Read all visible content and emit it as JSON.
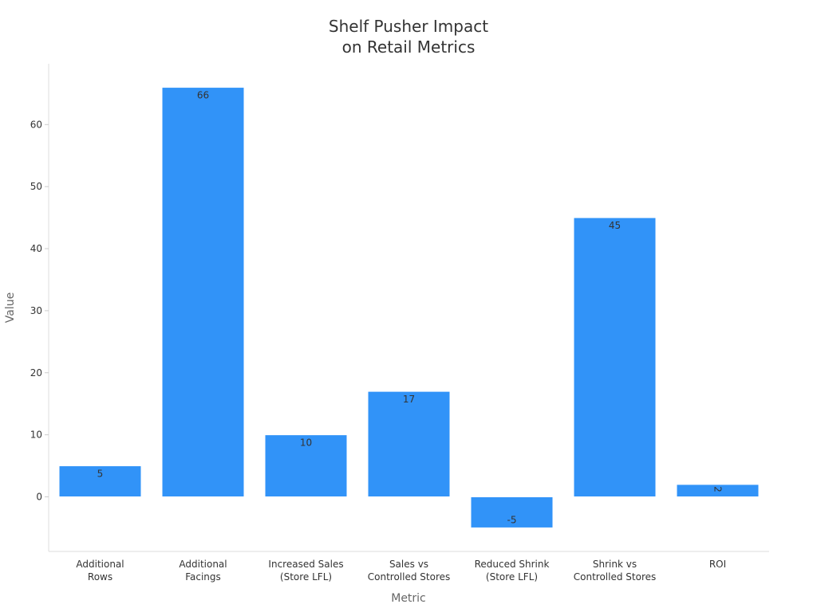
{
  "chart_data": {
    "type": "bar",
    "title_lines": [
      "Shelf Pusher Impact",
      "on Retail Metrics"
    ],
    "xlabel": "Metric",
    "ylabel": "Value",
    "categories": [
      [
        "Additional",
        "Rows"
      ],
      [
        "Additional",
        "Facings"
      ],
      [
        "Increased Sales",
        "(Store LFL)"
      ],
      [
        "Sales vs",
        "Controlled Stores"
      ],
      [
        "Reduced Shrink",
        "(Store LFL)"
      ],
      [
        "Shrink vs",
        "Controlled Stores"
      ],
      [
        "ROI"
      ]
    ],
    "values": [
      5,
      66,
      10,
      17,
      -5,
      45,
      2
    ],
    "data_labels": [
      "5",
      "66",
      "10",
      "17",
      "-5",
      "45",
      "2"
    ],
    "yticks": [
      0,
      10,
      20,
      30,
      40,
      50,
      60
    ],
    "ylim": [
      -8.8,
      69.8
    ],
    "bar_color": "#3193f8",
    "grid": false
  }
}
